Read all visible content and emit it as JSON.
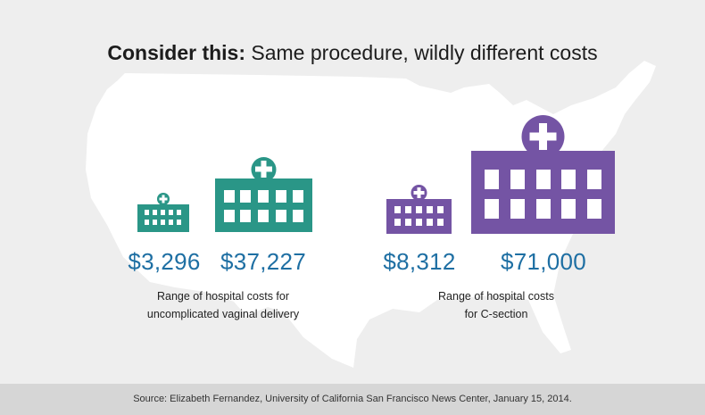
{
  "title": {
    "bold": "Consider this:",
    "rest": "Same procedure, wildly different costs"
  },
  "groups": [
    {
      "name": "vaginal-delivery",
      "color": "#2a9687",
      "low_price": "$3,296",
      "high_price": "$37,227",
      "caption_line1": "Range of hospital costs for",
      "caption_line2": "uncomplicated vaginal delivery"
    },
    {
      "name": "c-section",
      "color": "#7454a4",
      "low_price": "$8,312",
      "high_price": "$71,000",
      "caption_line1": "Range of hospital costs",
      "caption_line2": "for C-section"
    }
  ],
  "icons": {
    "hospital": "hospital-icon",
    "map": "us-map-icon"
  },
  "footer": {
    "source": "Source: Elizabeth Fernandez, University of California San Francisco News Center, January 15, 2014."
  }
}
